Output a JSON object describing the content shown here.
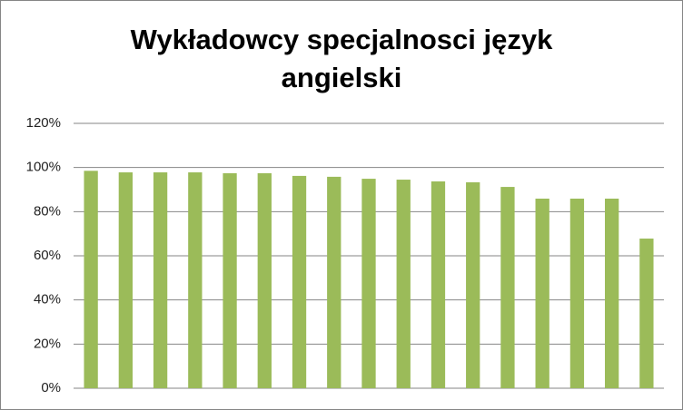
{
  "chart_data": {
    "type": "bar",
    "title": "Wykładowcy specjalnosci język angielski",
    "categories": [
      null,
      null,
      null,
      null,
      null,
      null,
      null,
      null,
      null,
      null,
      null,
      null,
      null,
      null,
      null,
      null,
      null
    ],
    "values": [
      98.5,
      97.8,
      97.8,
      97.8,
      97.4,
      97.4,
      96.2,
      95.8,
      94.9,
      94.5,
      93.7,
      93.3,
      91.2,
      85.9,
      85.9,
      85.9,
      67.8
    ],
    "color": "#9bbb59",
    "ylim": [
      0,
      120
    ],
    "yticks": [
      {
        "value": 0,
        "label": "0%"
      },
      {
        "value": 20,
        "label": "20%"
      },
      {
        "value": 40,
        "label": "40%"
      },
      {
        "value": 60,
        "label": "60%"
      },
      {
        "value": 80,
        "label": "80%"
      },
      {
        "value": 100,
        "label": "100%"
      },
      {
        "value": 120,
        "label": "120%"
      }
    ],
    "grid": true
  }
}
